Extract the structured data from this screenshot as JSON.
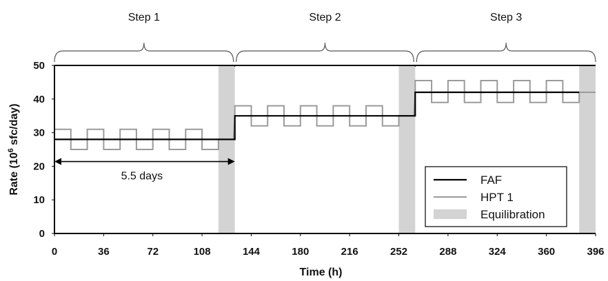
{
  "chart_data": {
    "type": "line",
    "title": "",
    "xlabel": "Time (h)",
    "ylabel_prefix": "Rate (10",
    "ylabel_sup": "6",
    "ylabel_suffix": " sfc/day)",
    "xlim": [
      0,
      396
    ],
    "ylim": [
      0,
      50
    ],
    "x_ticks": [
      0,
      36,
      72,
      108,
      144,
      180,
      216,
      252,
      288,
      324,
      360,
      396
    ],
    "y_ticks": [
      0,
      10,
      20,
      30,
      40,
      50
    ],
    "grid": false,
    "legend_position": "bottom-right",
    "steps": [
      {
        "label": "Step 1",
        "x_start": 0,
        "x_end": 132
      },
      {
        "label": "Step 2",
        "x_start": 132,
        "x_end": 264
      },
      {
        "label": "Step 3",
        "x_start": 264,
        "x_end": 396
      }
    ],
    "equilibration_bands": [
      [
        120,
        132
      ],
      [
        252,
        264
      ],
      [
        384,
        396
      ]
    ],
    "series": [
      {
        "name": "FAF",
        "color": "#000000",
        "style": "line",
        "x": [
          0,
          132,
          132,
          264,
          264,
          384
        ],
        "y": [
          28,
          28,
          35,
          35,
          42,
          42
        ]
      },
      {
        "name": "HPT 1",
        "color": "#9a9a9a",
        "style": "step",
        "segments": [
          {
            "x_start": 0,
            "x_end": 120,
            "base": 28,
            "high": 31,
            "low": 25,
            "period": 24
          },
          {
            "x_start": 132,
            "x_end": 252,
            "base": 35,
            "high": 38,
            "low": 32,
            "period": 24
          },
          {
            "x_start": 264,
            "x_end": 384,
            "base": 42,
            "high": 45.5,
            "low": 39,
            "period": 24
          }
        ]
      },
      {
        "name": "Equilibration",
        "color": "#d3d3d3",
        "style": "band"
      }
    ],
    "annotations": [
      {
        "text": "5.5 days",
        "x_start": 0,
        "x_end": 132,
        "y": 21
      }
    ]
  }
}
